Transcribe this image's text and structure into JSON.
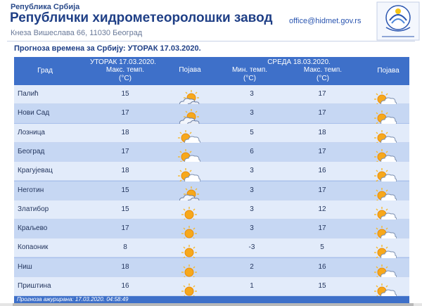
{
  "header": {
    "supertitle": "Република Србија",
    "title": "Републички хидрометеоролошки завод",
    "address": "Кнеза Вишеслава 66, 11030 Београд",
    "email": "office@hidmet.gov.rs",
    "logo_icon": "rhmz-logo-icon"
  },
  "forecast": {
    "title": "Прогноза времена за Србију: УТОРАК  17.03.2020.",
    "headers": {
      "city": "Град",
      "day1": "УТОРАК  17.03.2020.",
      "day1_max": "Макс. темп.",
      "day1_unit": "(°C)",
      "day1_phen": "Појава",
      "day2": "СРЕДА  18.03.2020.",
      "day2_min": "Мин. темп.",
      "day2_min_unit": "(°C)",
      "day2_max": "Макс. темп.",
      "day2_max_unit": "(°C)",
      "day2_phen": "Појава"
    },
    "rows": [
      {
        "city": "Палић",
        "max1": "15",
        "icon1": "partly-cloudy-icon",
        "min2": "3",
        "max2": "17",
        "icon2": "sun-cloud-icon"
      },
      {
        "city": "Нови Сад",
        "max1": "17",
        "icon1": "partly-cloudy-icon",
        "min2": "3",
        "max2": "17",
        "icon2": "sun-cloud-icon"
      },
      {
        "city": "Лозница",
        "max1": "18",
        "icon1": "sun-cloud-icon",
        "min2": "5",
        "max2": "18",
        "icon2": "sun-cloud-icon"
      },
      {
        "city": "Београд",
        "max1": "17",
        "icon1": "sun-cloud-icon",
        "min2": "6",
        "max2": "17",
        "icon2": "sun-cloud-icon"
      },
      {
        "city": "Крагујевац",
        "max1": "18",
        "icon1": "sun-cloud-icon",
        "min2": "3",
        "max2": "16",
        "icon2": "sun-cloud-icon"
      },
      {
        "city": "Неготин",
        "max1": "15",
        "icon1": "partly-cloudy-icon",
        "min2": "3",
        "max2": "17",
        "icon2": "sun-cloud-icon"
      },
      {
        "city": "Златибор",
        "max1": "15",
        "icon1": "sun-icon",
        "min2": "3",
        "max2": "12",
        "icon2": "sun-cloud-icon"
      },
      {
        "city": "Краљево",
        "max1": "17",
        "icon1": "sun-icon",
        "min2": "3",
        "max2": "17",
        "icon2": "sun-cloud-icon"
      },
      {
        "city": "Копаоник",
        "max1": "8",
        "icon1": "sun-icon",
        "min2": "-3",
        "max2": "5",
        "icon2": "sun-cloud-icon"
      },
      {
        "city": "Ниш",
        "max1": "18",
        "icon1": "sun-icon",
        "min2": "2",
        "max2": "16",
        "icon2": "sun-cloud-icon"
      },
      {
        "city": "Приштина",
        "max1": "16",
        "icon1": "sun-icon",
        "min2": "1",
        "max2": "15",
        "icon2": "sun-cloud-icon"
      }
    ],
    "footer": "Прогноза ажурирана:  17.03.2020. 04:58:49"
  },
  "colors": {
    "header_bg": "#3e70c9",
    "row_odd": "#e2ebfa",
    "row_even": "#c6d7f3",
    "title_blue": "#1f3f86"
  }
}
